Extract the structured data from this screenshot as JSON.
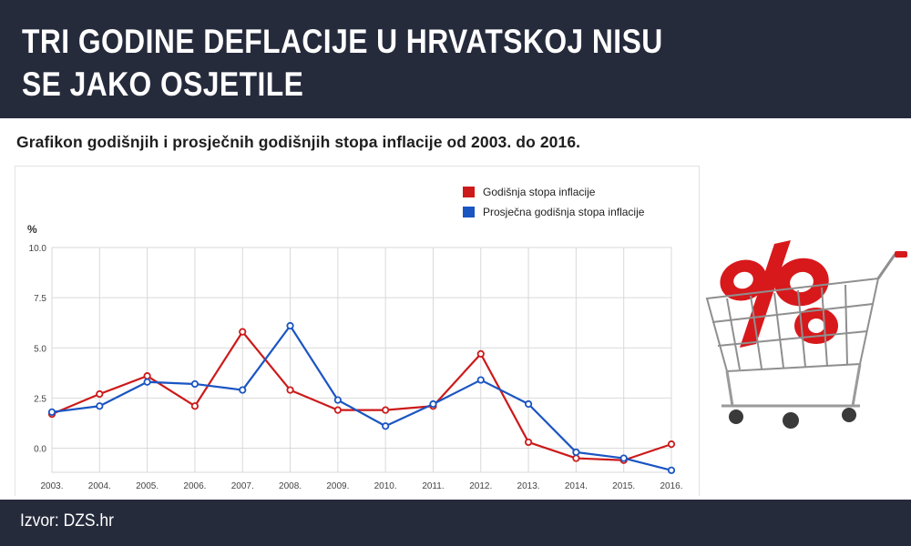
{
  "header": {
    "title": "TRI GODINE DEFLACIJE U HRVATSKOJ NISU SE JAKO OSJETILE"
  },
  "chart_heading": "Grafikon godišnjih i prosječnih godišnjih stopa inflacije od 2003. do 2016.",
  "footer": {
    "source": "Izvor: DZS.hr"
  },
  "cart_image": {
    "icon": "shopping-cart-percent-icon",
    "color": "#d7191c"
  },
  "chart_data": {
    "type": "line",
    "ylabel": "%",
    "xlabel": "",
    "ylim": [
      -1.2,
      10.0
    ],
    "yticks": [
      "10.0",
      "7.5",
      "5.0",
      "2.5",
      "0.0"
    ],
    "x": [
      "2003.",
      "2004.",
      "2005.",
      "2006.",
      "2007.",
      "2008.",
      "2009.",
      "2010.",
      "2011.",
      "2012.",
      "2013.",
      "2014.",
      "2015.",
      "2016."
    ],
    "grid": true,
    "legend_position": "top-right",
    "series": [
      {
        "name": "Godišnja stopa inflacije",
        "color": "#cc1a1a",
        "values": [
          1.7,
          2.7,
          3.6,
          2.1,
          5.8,
          2.9,
          1.9,
          1.9,
          2.1,
          4.7,
          0.3,
          -0.5,
          -0.6,
          0.2
        ]
      },
      {
        "name": "Prosječna godišnja stopa inflacije",
        "color": "#1a55c2",
        "values": [
          1.8,
          2.1,
          3.3,
          3.2,
          2.9,
          6.1,
          2.4,
          1.1,
          2.2,
          3.4,
          2.2,
          -0.2,
          -0.5,
          -1.1
        ]
      }
    ]
  }
}
